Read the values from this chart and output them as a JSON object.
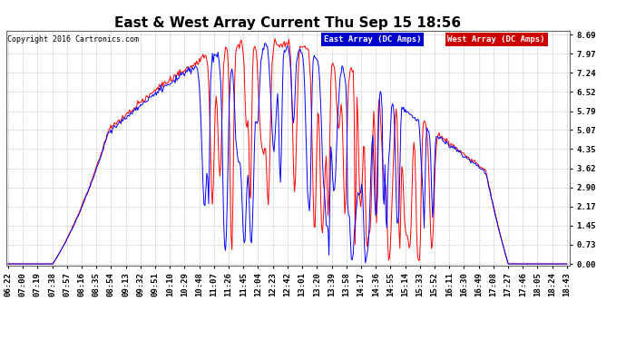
{
  "title": "East & West Array Current Thu Sep 15 18:56",
  "copyright": "Copyright 2016 Cartronics.com",
  "legend_east": "East Array (DC Amps)",
  "legend_west": "West Array (DC Amps)",
  "east_color": "#0000FF",
  "west_color": "#FF0000",
  "legend_east_bg": "#0000CC",
  "legend_west_bg": "#CC0000",
  "yticks": [
    0.0,
    0.73,
    1.45,
    2.17,
    2.9,
    3.62,
    4.35,
    5.07,
    5.79,
    6.52,
    7.24,
    7.97,
    8.69
  ],
  "ymax": 8.69,
  "ymin": 0.0,
  "background_color": "#FFFFFF",
  "plot_bg": "#FFFFFF",
  "grid_color": "#AAAAAA",
  "title_fontsize": 11,
  "tick_fontsize": 6.5,
  "x_labels": [
    "06:22",
    "07:00",
    "07:19",
    "07:38",
    "07:57",
    "08:16",
    "08:35",
    "08:54",
    "09:13",
    "09:32",
    "09:51",
    "10:10",
    "10:29",
    "10:48",
    "11:07",
    "11:26",
    "11:45",
    "12:04",
    "12:23",
    "12:42",
    "13:01",
    "13:20",
    "13:39",
    "13:58",
    "14:17",
    "14:36",
    "14:55",
    "15:14",
    "15:33",
    "15:52",
    "16:11",
    "16:30",
    "16:49",
    "17:08",
    "17:27",
    "17:46",
    "18:05",
    "18:24",
    "18:43"
  ]
}
